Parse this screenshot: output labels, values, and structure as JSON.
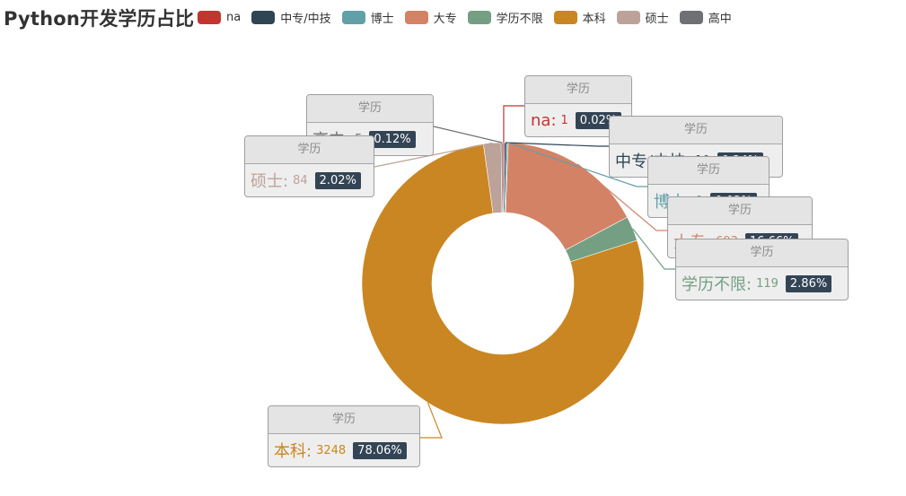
{
  "title": "Python开发学历占比",
  "chart_data": {
    "type": "pie",
    "variant": "doughnut",
    "title": "Python开发学历占比",
    "series_name": "学历",
    "legend_position": "top",
    "categories": [
      "na",
      "中专/中技",
      "博士",
      "大专",
      "学历不限",
      "本科",
      "硕士",
      "高中"
    ],
    "values": [
      1,
      10,
      1,
      693,
      119,
      3248,
      84,
      5
    ],
    "percent_labels": [
      "0.02%",
      "0.24%",
      "0.02%",
      "16.66%",
      "2.86%",
      "78.06%",
      "2.02%",
      "0.12%"
    ],
    "colors": [
      "#c23531",
      "#2f4554",
      "#61a0a8",
      "#d48265",
      "#749f83",
      "#ca8622",
      "#bda29a",
      "#6e7074"
    ],
    "label_colors": [
      "#c23531",
      "#2f4554",
      "#61a0a8",
      "#d48265",
      "#749f83",
      "#ca8622",
      "#bda29a",
      "#6e7074"
    ]
  }
}
